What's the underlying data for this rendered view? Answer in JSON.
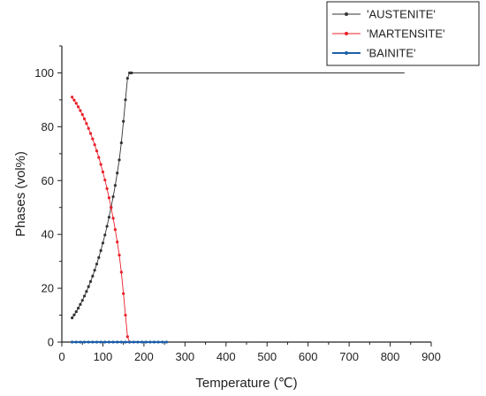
{
  "chart_data": {
    "type": "line",
    "xlabel": "Temperature (℃)",
    "ylabel": "Phases (vol%)",
    "xlim": [
      0,
      900
    ],
    "ylim": [
      0,
      110
    ],
    "xticks": [
      0,
      100,
      200,
      300,
      400,
      500,
      600,
      700,
      800,
      900
    ],
    "yticks": [
      0,
      20,
      40,
      60,
      80,
      100
    ],
    "grid": false,
    "legend_position": "top-right",
    "series": [
      {
        "name": "'AUSTENITE'",
        "color": "#333333",
        "marker": "dot",
        "x": [
          25,
          30,
          35,
          40,
          45,
          50,
          55,
          60,
          65,
          70,
          75,
          80,
          85,
          90,
          95,
          100,
          105,
          110,
          115,
          120,
          125,
          130,
          135,
          140,
          145,
          150,
          155,
          160,
          165,
          170,
          175,
          180,
          185,
          190,
          195,
          200,
          835
        ],
        "y": [
          9.0,
          10.1,
          11.3,
          12.6,
          14.0,
          15.5,
          17.1,
          18.8,
          20.6,
          22.5,
          24.5,
          26.7,
          29.0,
          31.4,
          34.0,
          36.8,
          39.8,
          43.0,
          46.4,
          50.1,
          54.0,
          58.2,
          62.8,
          67.7,
          74.0,
          82.0,
          90.0,
          98.0,
          100,
          100,
          100,
          100,
          100,
          100,
          100,
          100,
          100
        ]
      },
      {
        "name": "'MARTENSITE'",
        "color": "#e8202a",
        "marker": "dot",
        "x": [
          25,
          30,
          35,
          40,
          45,
          50,
          55,
          60,
          65,
          70,
          75,
          80,
          85,
          90,
          95,
          100,
          105,
          110,
          115,
          120,
          125,
          130,
          135,
          140,
          145,
          150,
          155,
          160,
          165
        ],
        "y": [
          91.0,
          89.9,
          88.7,
          87.4,
          86.0,
          84.5,
          82.9,
          81.2,
          79.4,
          77.5,
          75.5,
          73.3,
          71.0,
          68.6,
          66.0,
          63.2,
          60.2,
          57.0,
          53.6,
          49.9,
          46.0,
          41.8,
          37.2,
          32.3,
          26.0,
          18.0,
          10.0,
          2.0,
          0
        ]
      },
      {
        "name": "'BAINITE'",
        "color": "#1f5fa8",
        "marker": "dot",
        "x": [
          25,
          35,
          45,
          55,
          65,
          75,
          85,
          95,
          105,
          115,
          125,
          135,
          145,
          155,
          165,
          175,
          185,
          195,
          205,
          215,
          225,
          235,
          245,
          255
        ],
        "y": [
          0,
          0,
          0,
          0,
          0,
          0,
          0,
          0,
          0,
          0,
          0,
          0,
          0,
          0,
          0,
          0,
          0,
          0,
          0,
          0,
          0,
          0,
          0,
          0
        ]
      }
    ]
  }
}
